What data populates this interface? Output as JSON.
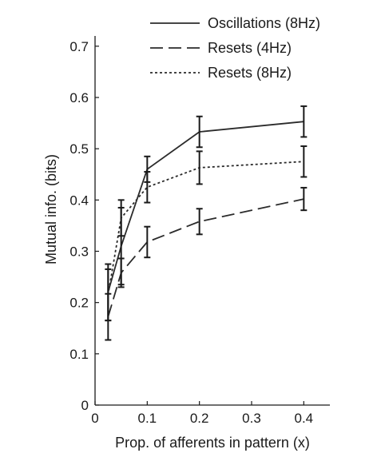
{
  "chart_data": {
    "type": "line",
    "title": "",
    "xlabel": "Prop. of afferents in pattern (x)",
    "ylabel": "Mutual info. (bits)",
    "xlim": [
      0,
      0.45
    ],
    "ylim": [
      0,
      0.72
    ],
    "x_ticks": [
      0,
      0.1,
      0.2,
      0.3,
      0.4
    ],
    "x_tick_labels": [
      "0",
      "0.1",
      "0.2",
      "0.3",
      "0.4"
    ],
    "y_ticks": [
      0,
      0.1,
      0.2,
      0.3,
      0.4,
      0.5,
      0.6,
      0.7
    ],
    "y_tick_labels": [
      "0",
      "0.1",
      "0.2",
      "0.3",
      "0.4",
      "0.5",
      "0.6",
      "0.7"
    ],
    "grid": false,
    "legend_position": "top-right",
    "series": [
      {
        "name": "Oscillations (8Hz)",
        "style": "solid",
        "color": "#2b2b2b",
        "x": [
          0.025,
          0.05,
          0.1,
          0.2,
          0.4
        ],
        "y": [
          0.22,
          0.31,
          0.46,
          0.533,
          0.553
        ],
        "err": [
          0.055,
          0.075,
          0.025,
          0.03,
          0.03
        ]
      },
      {
        "name": "Resets (4Hz)",
        "style": "dashed",
        "color": "#2b2b2b",
        "x": [
          0.025,
          0.05,
          0.1,
          0.2,
          0.4
        ],
        "y": [
          0.172,
          0.258,
          0.318,
          0.358,
          0.402
        ],
        "err": [
          0.045,
          0.028,
          0.03,
          0.025,
          0.022
        ]
      },
      {
        "name": "Resets (8Hz)",
        "style": "dotted",
        "color": "#2b2b2b",
        "x": [
          0.025,
          0.05,
          0.1,
          0.2,
          0.4
        ],
        "y": [
          0.215,
          0.365,
          0.425,
          0.463,
          0.475
        ],
        "err": [
          0.05,
          0.035,
          0.03,
          0.032,
          0.03
        ]
      }
    ]
  }
}
